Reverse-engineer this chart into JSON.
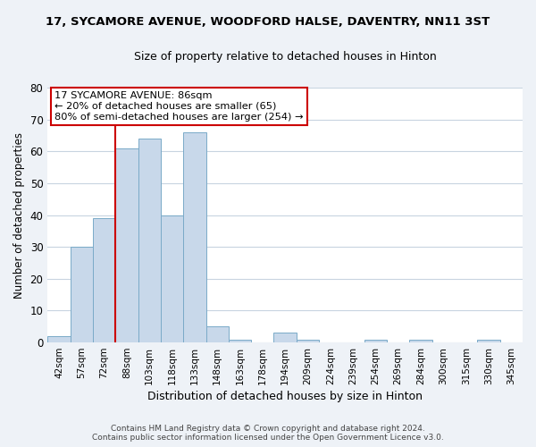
{
  "title": "17, SYCAMORE AVENUE, WOODFORD HALSE, DAVENTRY, NN11 3ST",
  "subtitle": "Size of property relative to detached houses in Hinton",
  "xlabel": "Distribution of detached houses by size in Hinton",
  "ylabel": "Number of detached properties",
  "bar_labels": [
    "42sqm",
    "57sqm",
    "72sqm",
    "88sqm",
    "103sqm",
    "118sqm",
    "133sqm",
    "148sqm",
    "163sqm",
    "178sqm",
    "194sqm",
    "209sqm",
    "224sqm",
    "239sqm",
    "254sqm",
    "269sqm",
    "284sqm",
    "300sqm",
    "315sqm",
    "330sqm",
    "345sqm"
  ],
  "bar_values": [
    2,
    30,
    39,
    61,
    64,
    40,
    66,
    5,
    1,
    0,
    3,
    1,
    0,
    0,
    1,
    0,
    1,
    0,
    0,
    1,
    0
  ],
  "bar_color": "#c8d8ea",
  "bar_edge_color": "#7aaac8",
  "vline_color": "#cc0000",
  "ylim": [
    0,
    80
  ],
  "yticks": [
    0,
    10,
    20,
    30,
    40,
    50,
    60,
    70,
    80
  ],
  "annotation_line1": "17 SYCAMORE AVENUE: 86sqm",
  "annotation_line2": "← 20% of detached houses are smaller (65)",
  "annotation_line3": "80% of semi-detached houses are larger (254) →",
  "footer_line1": "Contains HM Land Registry data © Crown copyright and database right 2024.",
  "footer_line2": "Contains public sector information licensed under the Open Government Licence v3.0.",
  "bg_color": "#eef2f7",
  "plot_bg_color": "#ffffff",
  "grid_color": "#c8d4e0",
  "vline_index": 3
}
